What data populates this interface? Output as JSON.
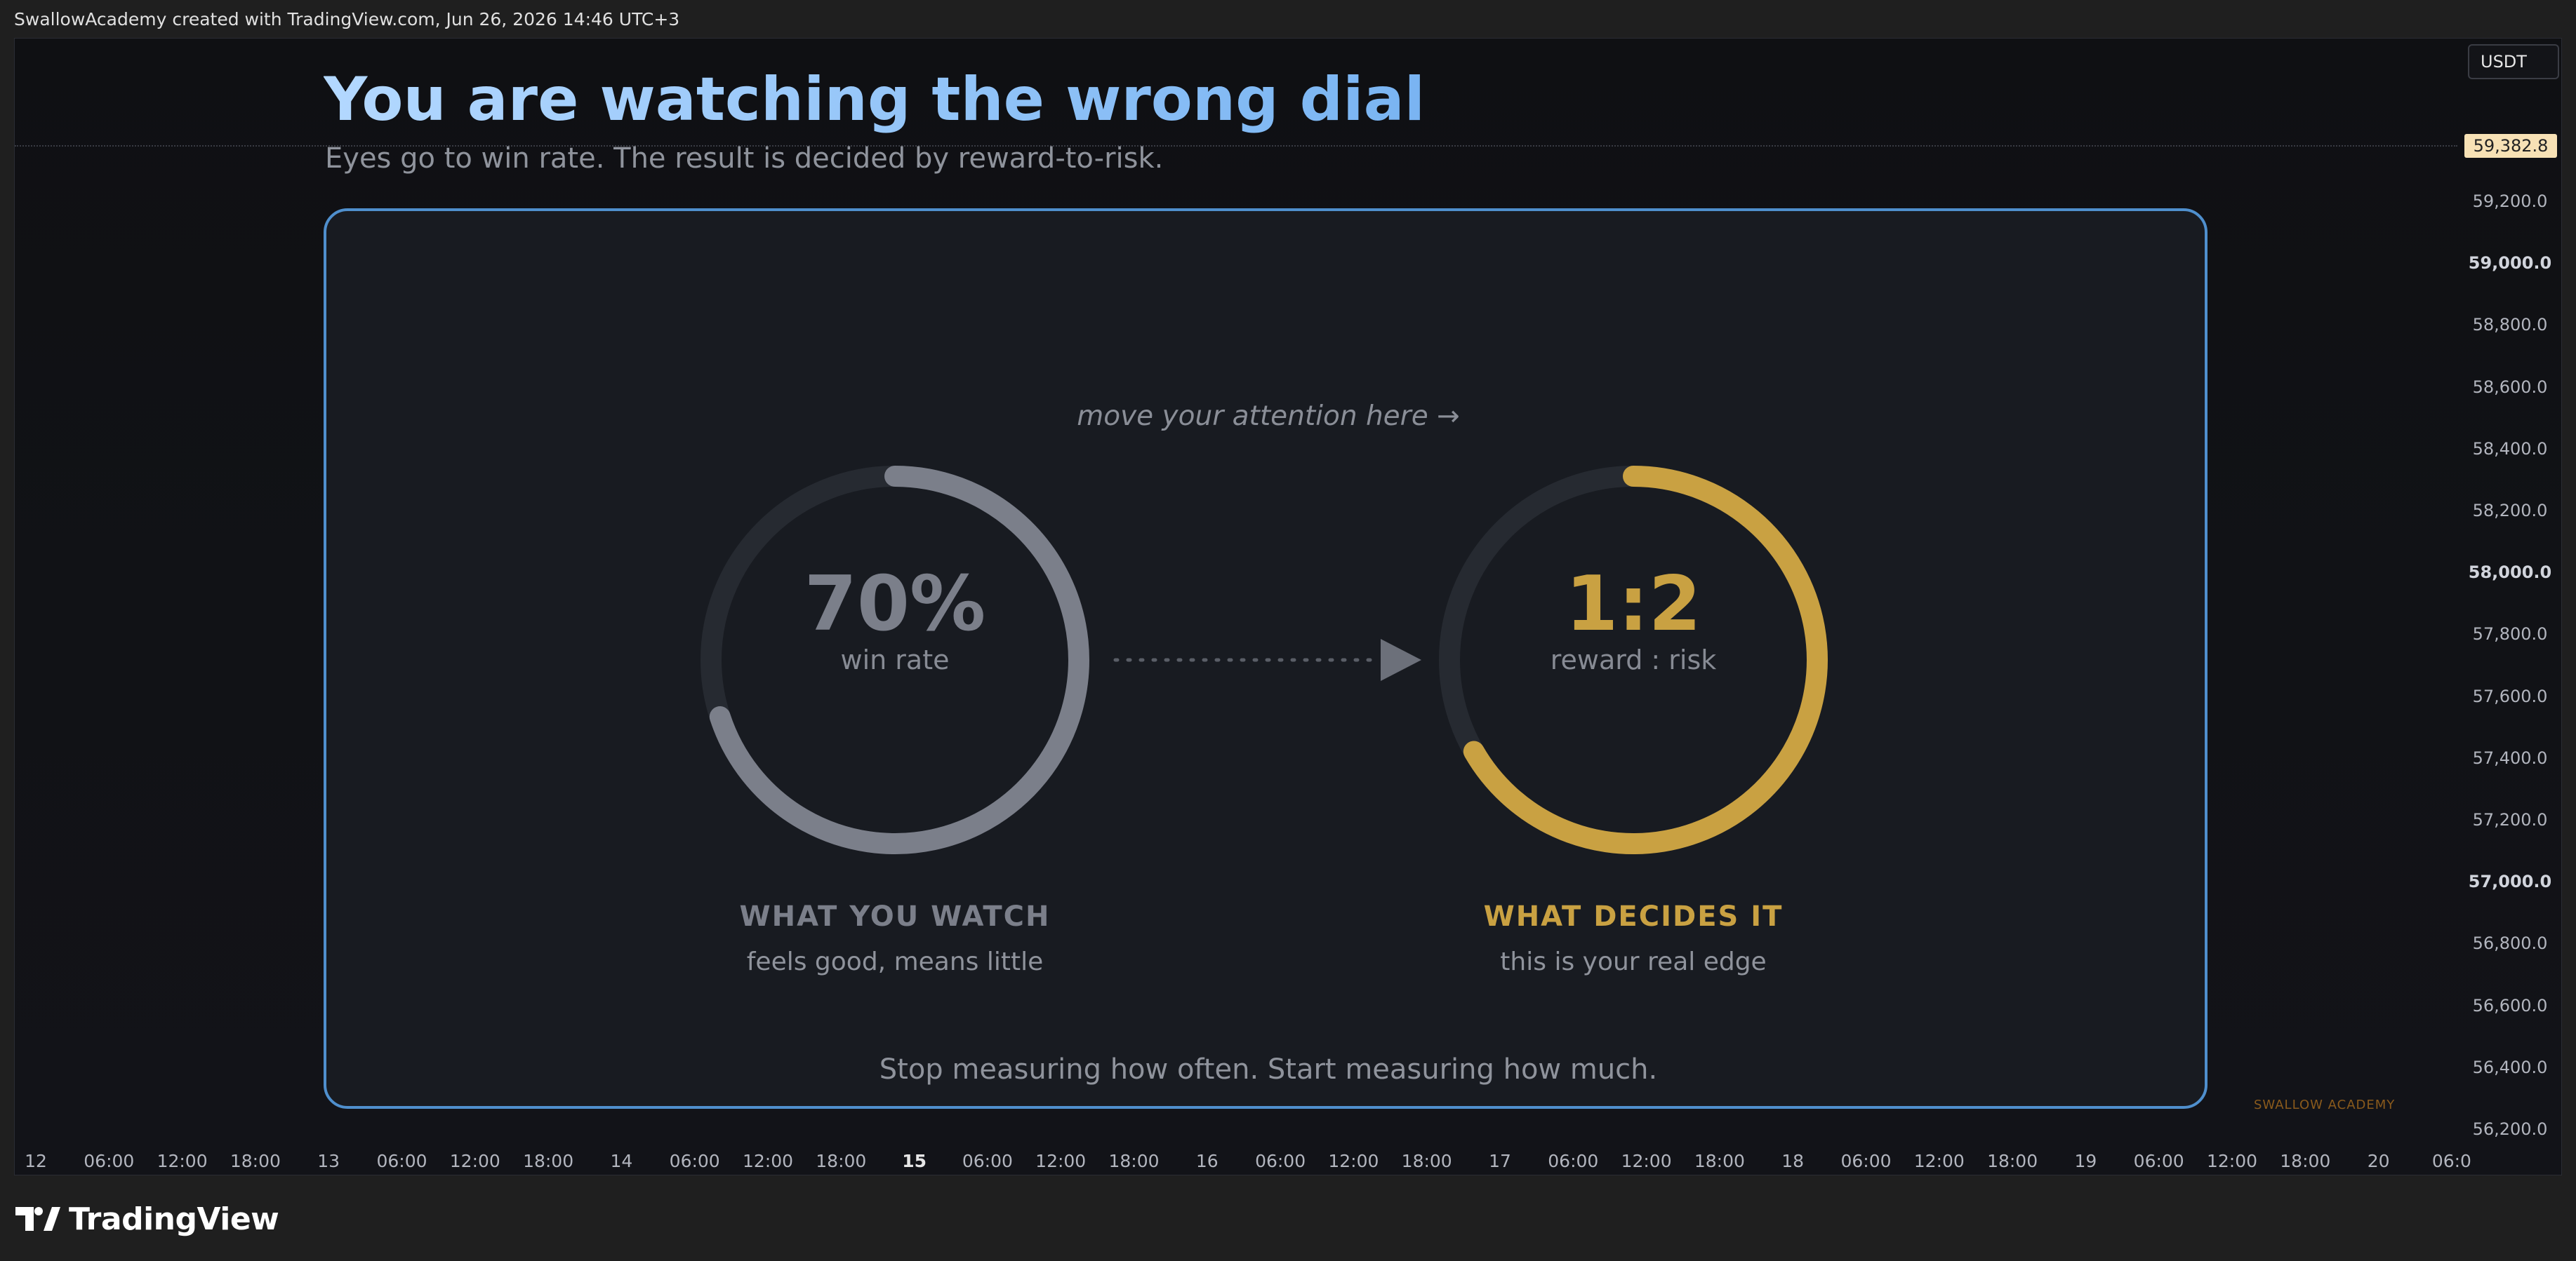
{
  "topbar": {
    "caption": "SwallowAcademy created with TradingView.com, Jun 26, 2026 14:46 UTC+3"
  },
  "chart": {
    "currency": "USDT",
    "last_price": "59,382.8",
    "price_ticks": [
      {
        "label": "59,200.0",
        "bold": false
      },
      {
        "label": "59,000.0",
        "bold": true
      },
      {
        "label": "58,800.0",
        "bold": false
      },
      {
        "label": "58,600.0",
        "bold": false
      },
      {
        "label": "58,400.0",
        "bold": false
      },
      {
        "label": "58,200.0",
        "bold": false
      },
      {
        "label": "58,000.0",
        "bold": true
      },
      {
        "label": "57,800.0",
        "bold": false
      },
      {
        "label": "57,600.0",
        "bold": false
      },
      {
        "label": "57,400.0",
        "bold": false
      },
      {
        "label": "57,200.0",
        "bold": false
      },
      {
        "label": "57,000.0",
        "bold": true
      },
      {
        "label": "56,800.0",
        "bold": false
      },
      {
        "label": "56,600.0",
        "bold": false
      },
      {
        "label": "56,400.0",
        "bold": false
      },
      {
        "label": "56,200.0",
        "bold": false
      }
    ],
    "time_ticks": [
      {
        "label": "12",
        "bold": false
      },
      {
        "label": "06:00",
        "bold": false
      },
      {
        "label": "12:00",
        "bold": false
      },
      {
        "label": "18:00",
        "bold": false
      },
      {
        "label": "13",
        "bold": false
      },
      {
        "label": "06:00",
        "bold": false
      },
      {
        "label": "12:00",
        "bold": false
      },
      {
        "label": "18:00",
        "bold": false
      },
      {
        "label": "14",
        "bold": false
      },
      {
        "label": "06:00",
        "bold": false
      },
      {
        "label": "12:00",
        "bold": false
      },
      {
        "label": "18:00",
        "bold": false
      },
      {
        "label": "15",
        "bold": true
      },
      {
        "label": "06:00",
        "bold": false
      },
      {
        "label": "12:00",
        "bold": false
      },
      {
        "label": "18:00",
        "bold": false
      },
      {
        "label": "16",
        "bold": false
      },
      {
        "label": "06:00",
        "bold": false
      },
      {
        "label": "12:00",
        "bold": false
      },
      {
        "label": "18:00",
        "bold": false
      },
      {
        "label": "17",
        "bold": false
      },
      {
        "label": "06:00",
        "bold": false
      },
      {
        "label": "12:00",
        "bold": false
      },
      {
        "label": "18:00",
        "bold": false
      },
      {
        "label": "18",
        "bold": false
      },
      {
        "label": "06:00",
        "bold": false
      },
      {
        "label": "12:00",
        "bold": false
      },
      {
        "label": "18:00",
        "bold": false
      },
      {
        "label": "19",
        "bold": false
      },
      {
        "label": "06:00",
        "bold": false
      },
      {
        "label": "12:00",
        "bold": false
      },
      {
        "label": "18:00",
        "bold": false
      },
      {
        "label": "20",
        "bold": false
      },
      {
        "label": "06:0",
        "bold": false
      }
    ]
  },
  "overlay": {
    "headline": "You are watching the wrong dial",
    "subhead": "Eyes go to win rate. The result is decided by reward-to-risk.",
    "hint": "move your attention here →",
    "left_dial": {
      "value": "70%",
      "label": "win rate",
      "fill_fraction": 0.7,
      "color": "#7b7f8a",
      "caption_title": "WHAT YOU WATCH",
      "caption_sub": "feels good, means little"
    },
    "right_dial": {
      "value": "1:2",
      "label": "reward : risk",
      "fill_fraction": 0.667,
      "color": "#c9a142",
      "caption_title": "WHAT DECIDES IT",
      "caption_sub": "this is your real edge"
    },
    "footer": "Stop measuring how often. Start measuring how much.",
    "watermark": "SWALLOW ACADEMY"
  },
  "colors": {
    "accent_blue": "#4f8fcd",
    "gold": "#c9a142",
    "track": "#262a31"
  },
  "brand": {
    "name": "TradingView",
    "logo_icon": "tradingview-logo-icon"
  }
}
